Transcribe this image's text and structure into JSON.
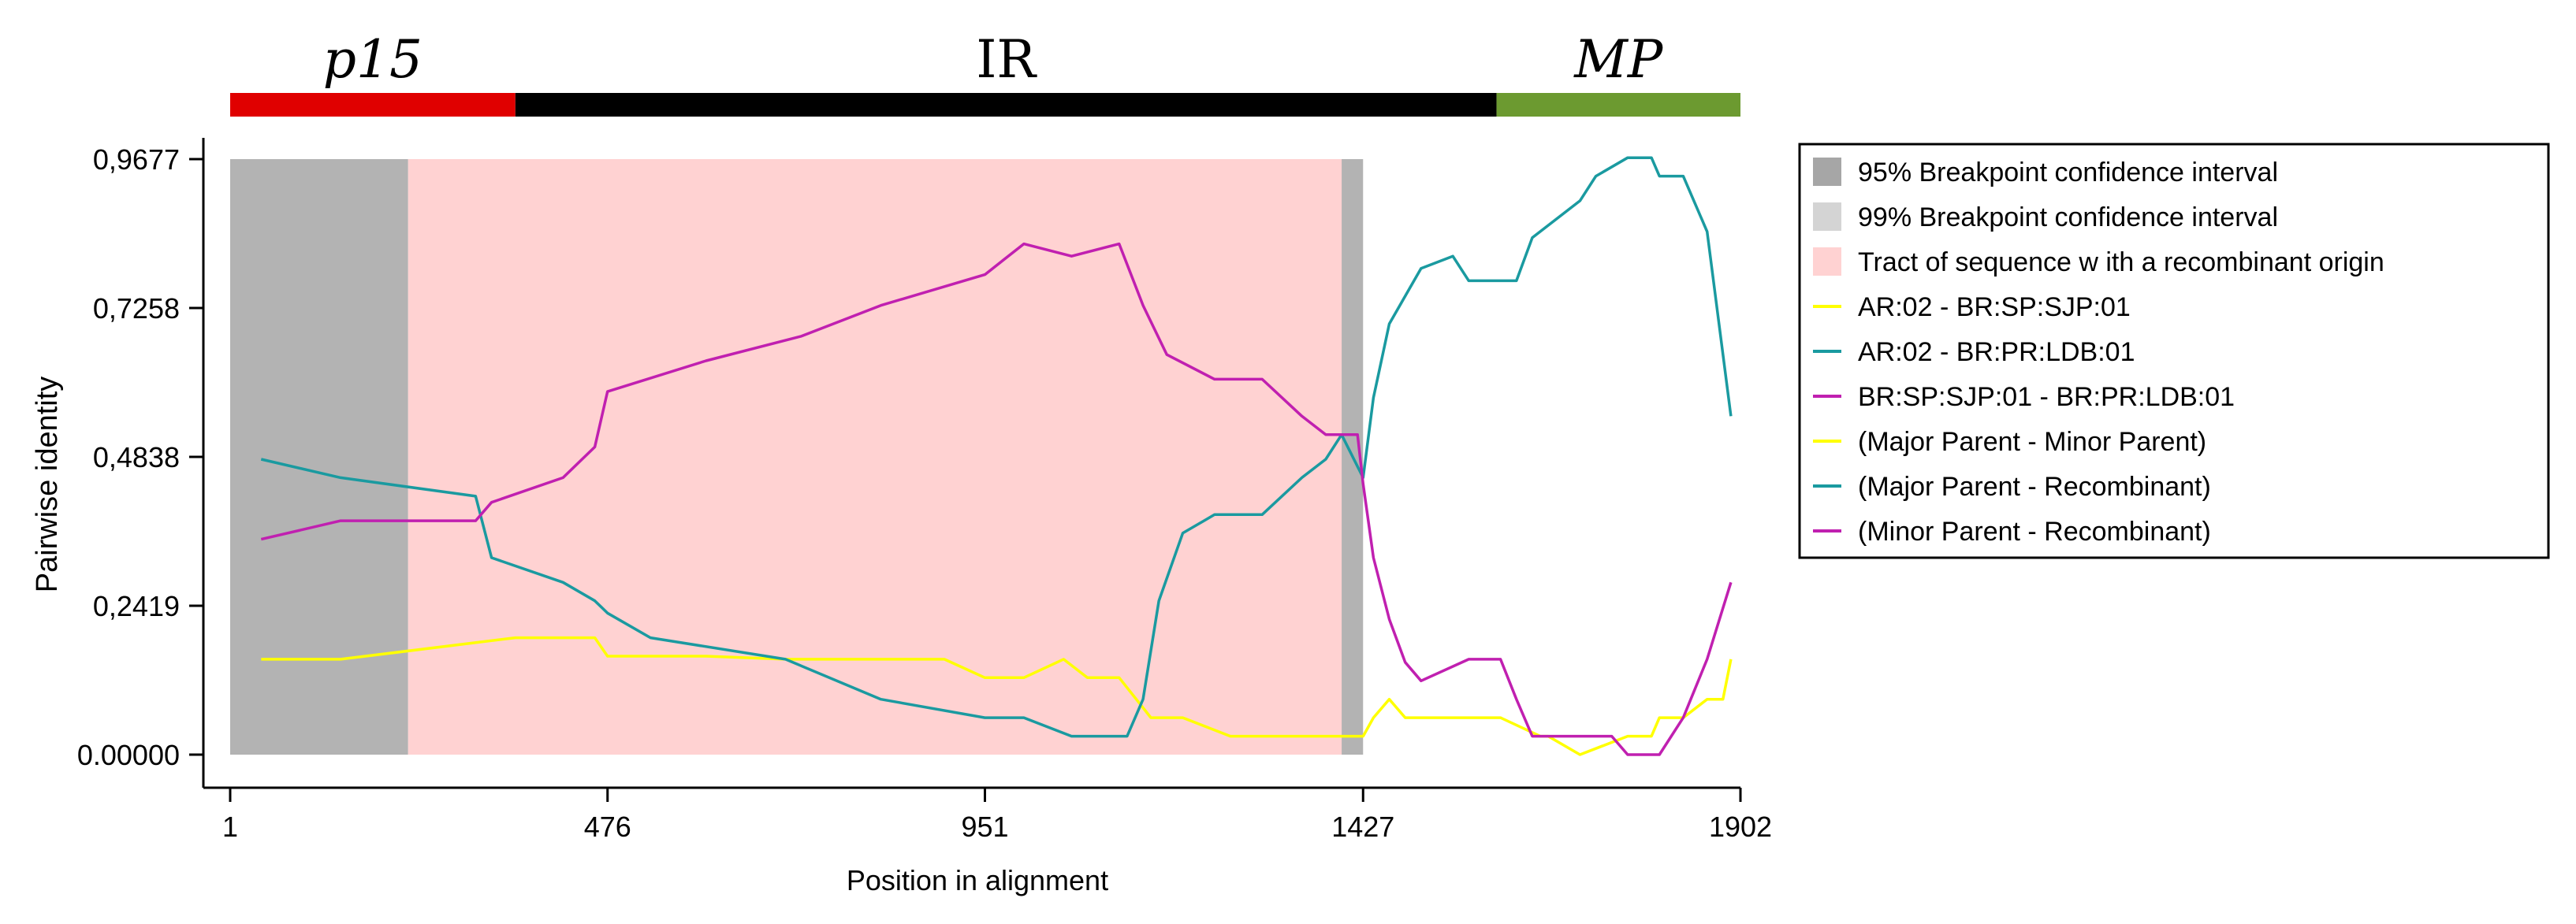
{
  "genome_map": {
    "segments": [
      {
        "label": "p15",
        "start": 1,
        "end": 360,
        "color": "#e00000",
        "italic": true
      },
      {
        "label": "IR",
        "start": 360,
        "end": 1595,
        "color": "#000000",
        "italic": false
      },
      {
        "label": "MP",
        "start": 1595,
        "end": 1902,
        "color": "#6c9a30",
        "italic": true
      }
    ]
  },
  "chart_data": {
    "type": "line",
    "xlabel": "Position in alignment",
    "ylabel": "Pairwise identity",
    "xlim": [
      1,
      1902
    ],
    "ylim": [
      0,
      0.9677
    ],
    "xticks": [
      1,
      476,
      951,
      1427,
      1902
    ],
    "yticks": [
      0,
      0.2419,
      0.4838,
      0.7258,
      0.9677
    ],
    "ytick_labels": [
      "0.00000",
      "0,2419",
      "0,4838",
      "0,7258",
      "0,9677"
    ],
    "regions": [
      {
        "name": "95% Breakpoint confidence interval",
        "x0": 1,
        "x1": 225,
        "color": "#b3b3b3"
      },
      {
        "name": "95% Breakpoint confidence interval",
        "x0": 1400,
        "x1": 1427,
        "color": "#b3b3b3"
      },
      {
        "name": "Tract of sequence with a recombinant origin",
        "x0": 225,
        "x1": 1400,
        "color": "#ffd2d2"
      }
    ],
    "legend": [
      {
        "label": "95% Breakpoint confidence interval",
        "kind": "box",
        "color": "#a6a6a6"
      },
      {
        "label": "99% Breakpoint confidence interval",
        "kind": "box",
        "color": "#d4d4d4"
      },
      {
        "label": "Tract of sequence w ith a recombinant origin",
        "kind": "box",
        "color": "#ffd2d2"
      },
      {
        "label": "AR:02 - BR:SP:SJP:01",
        "kind": "line",
        "color": "#ffff00"
      },
      {
        "label": "AR:02 - BR:PR:LDB:01",
        "kind": "line",
        "color": "#1a9aa0"
      },
      {
        "label": "BR:SP:SJP:01 - BR:PR:LDB:01",
        "kind": "line",
        "color": "#c020b0"
      },
      {
        "label": "(Major Parent - Minor Parent)",
        "kind": "line",
        "color": "#ffff00"
      },
      {
        "label": "(Major Parent - Recombinant)",
        "kind": "line",
        "color": "#1a9aa0"
      },
      {
        "label": "(Minor Parent - Recombinant)",
        "kind": "line",
        "color": "#c020b0"
      }
    ],
    "series": [
      {
        "name": "AR:02 - BR:SP:SJP:01",
        "color": "#ffff00",
        "x": [
          40,
          140,
          360,
          460,
          476,
          600,
          700,
          800,
          900,
          951,
          1000,
          1050,
          1080,
          1120,
          1160,
          1170,
          1200,
          1260,
          1300,
          1380,
          1427,
          1440,
          1460,
          1480,
          1600,
          1650,
          1660,
          1700,
          1760,
          1790,
          1800,
          1830,
          1860,
          1880,
          1890
        ],
        "y": [
          0.155,
          0.155,
          0.19,
          0.19,
          0.16,
          0.16,
          0.155,
          0.155,
          0.155,
          0.125,
          0.125,
          0.155,
          0.125,
          0.125,
          0.06,
          0.06,
          0.06,
          0.03,
          0.03,
          0.03,
          0.03,
          0.06,
          0.09,
          0.06,
          0.06,
          0.03,
          0.03,
          0.0,
          0.03,
          0.03,
          0.06,
          0.06,
          0.09,
          0.09,
          0.155
        ]
      },
      {
        "name": "AR:02 - BR:PR:LDB:01",
        "color": "#1a9aa0",
        "x": [
          40,
          140,
          310,
          330,
          420,
          460,
          476,
          530,
          700,
          820,
          951,
          1000,
          1060,
          1130,
          1150,
          1170,
          1200,
          1240,
          1300,
          1350,
          1380,
          1400,
          1427,
          1440,
          1460,
          1500,
          1540,
          1560,
          1620,
          1640,
          1700,
          1720,
          1760,
          1790,
          1800,
          1830,
          1860,
          1890
        ],
        "y": [
          0.48,
          0.45,
          0.42,
          0.32,
          0.28,
          0.25,
          0.23,
          0.19,
          0.155,
          0.09,
          0.06,
          0.06,
          0.03,
          0.03,
          0.09,
          0.25,
          0.36,
          0.39,
          0.39,
          0.45,
          0.48,
          0.52,
          0.45,
          0.58,
          0.7,
          0.79,
          0.81,
          0.77,
          0.77,
          0.84,
          0.9,
          0.94,
          0.97,
          0.97,
          0.94,
          0.94,
          0.85,
          0.55
        ]
      },
      {
        "name": "BR:SP:SJP:01 - BR:PR:LDB:01",
        "color": "#c020b0",
        "x": [
          40,
          140,
          310,
          330,
          420,
          460,
          476,
          600,
          720,
          820,
          951,
          1000,
          1060,
          1120,
          1150,
          1180,
          1240,
          1300,
          1350,
          1380,
          1400,
          1420,
          1427,
          1440,
          1460,
          1480,
          1500,
          1560,
          1600,
          1620,
          1640,
          1680,
          1740,
          1760,
          1800,
          1830,
          1860,
          1890
        ],
        "y": [
          0.35,
          0.38,
          0.38,
          0.41,
          0.45,
          0.5,
          0.59,
          0.64,
          0.68,
          0.73,
          0.78,
          0.83,
          0.81,
          0.83,
          0.73,
          0.65,
          0.61,
          0.61,
          0.55,
          0.52,
          0.52,
          0.52,
          0.44,
          0.32,
          0.22,
          0.15,
          0.12,
          0.155,
          0.155,
          0.09,
          0.03,
          0.03,
          0.03,
          0.0,
          0.0,
          0.06,
          0.155,
          0.28
        ]
      }
    ]
  }
}
